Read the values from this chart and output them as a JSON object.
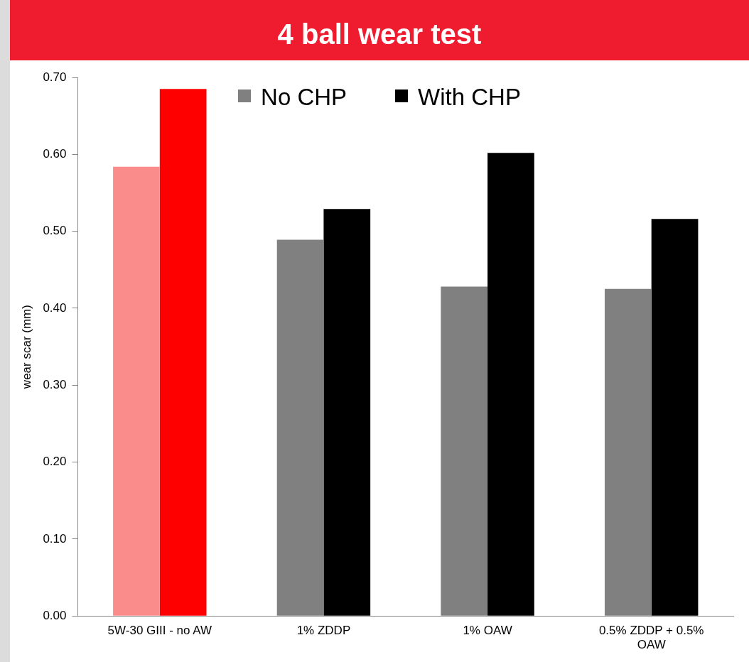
{
  "chart_data": {
    "type": "bar",
    "title": "4 ball wear test",
    "ylabel": "wear scar (mm)",
    "categories": [
      "5W-30 GIII - no AW",
      "1% ZDDP",
      "1% OAW",
      "0.5% ZDDP + 0.5% OAW"
    ],
    "series": [
      {
        "name": "No CHP",
        "color": "#808080",
        "colors": [
          "#fb8c8c",
          "#808080",
          "#808080",
          "#808080"
        ],
        "values": [
          0.584,
          0.489,
          0.428,
          0.425
        ]
      },
      {
        "name": "With CHP",
        "color": "#000000",
        "colors": [
          "#ff0000",
          "#000000",
          "#000000",
          "#000000"
        ],
        "values": [
          0.685,
          0.529,
          0.602,
          0.516
        ]
      }
    ],
    "ylim": [
      0,
      0.7
    ],
    "yticks": [
      {
        "value": 0,
        "label": "0.00"
      },
      {
        "value": 0.1,
        "label": "0.10"
      },
      {
        "value": 0.2,
        "label": "0.20"
      },
      {
        "value": 0.3,
        "label": "0.30"
      },
      {
        "value": 0.4,
        "label": "0.40"
      },
      {
        "value": 0.5,
        "label": "0.50"
      },
      {
        "value": 0.6,
        "label": "0.60"
      },
      {
        "value": 0.7,
        "label": "0.70"
      }
    ],
    "legend": "top",
    "grid": false
  }
}
